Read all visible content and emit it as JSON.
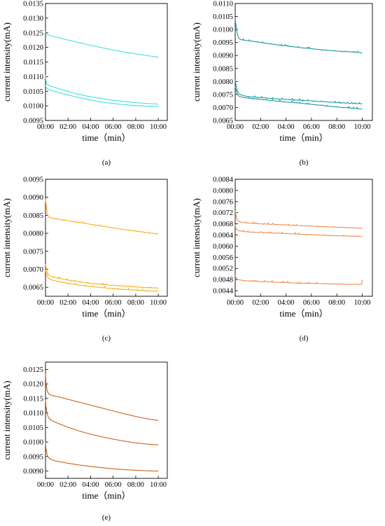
{
  "chart_data": [
    {
      "type": "line",
      "caption": "(a)",
      "xlabel": "time（min）",
      "ylabel": "current intensity(mA)",
      "xticks": [
        "00:00",
        "02:00",
        "04:00",
        "06:00",
        "08:00",
        "10:00"
      ],
      "yticks": [
        "0.0095",
        "0.0100",
        "0.0105",
        "0.0110",
        "0.0115",
        "0.0120",
        "0.0125",
        "0.0130",
        "0.0135"
      ],
      "xlim": [
        0,
        10.8
      ],
      "ylim": [
        0.0095,
        0.0135
      ],
      "color": "#3fe0e0",
      "series": [
        {
          "x": [
            0,
            0.05,
            0.2,
            0.5,
            1,
            2,
            3,
            4,
            5,
            6,
            7,
            8,
            9,
            10
          ],
          "values": [
            0.01255,
            0.01248,
            0.01243,
            0.0124,
            0.01235,
            0.01225,
            0.01216,
            0.01207,
            0.01199,
            0.01191,
            0.01184,
            0.01178,
            0.01172,
            0.01166
          ]
        },
        {
          "x": [
            0,
            0.03,
            0.1,
            0.3,
            0.6,
            1,
            2,
            3,
            4,
            5,
            6,
            7,
            8,
            9,
            10
          ],
          "values": [
            0.01105,
            0.0109,
            0.01076,
            0.0107,
            0.01066,
            0.01061,
            0.01049,
            0.01039,
            0.01031,
            0.01025,
            0.01019,
            0.01015,
            0.01011,
            0.01008,
            0.01006
          ]
        },
        {
          "x": [
            0,
            0.1,
            0.3,
            0.6,
            1,
            2,
            3,
            4,
            5,
            6,
            7,
            8,
            9,
            10
          ],
          "values": [
            0.01068,
            0.01061,
            0.01056,
            0.01052,
            0.01047,
            0.01037,
            0.01028,
            0.0102,
            0.01013,
            0.01008,
            0.01004,
            0.01001,
            0.00999,
            0.00998
          ]
        }
      ],
      "noise": false
    },
    {
      "type": "line",
      "caption": "(b)",
      "xlabel": "time（min）",
      "ylabel": "current intensity(mA)",
      "xticks": [
        "00:00",
        "02:00",
        "04:00",
        "06:00",
        "08:00",
        "10:00"
      ],
      "yticks": [
        "0.0065",
        "0.0070",
        "0.0075",
        "0.0080",
        "0.0085",
        "0.0090",
        "0.0095",
        "0.0100",
        "0.0105",
        "0.0110"
      ],
      "xlim": [
        0,
        10.8
      ],
      "ylim": [
        0.0065,
        0.011
      ],
      "color": "#1a9aa0",
      "series": [
        {
          "x": [
            0,
            0.05,
            0.15,
            0.3,
            0.5,
            1,
            2,
            3,
            4,
            5,
            6,
            7,
            8,
            9,
            10
          ],
          "values": [
            0.0104,
            0.0102,
            0.00985,
            0.00965,
            0.0096,
            0.00957,
            0.0095,
            0.00943,
            0.00937,
            0.00931,
            0.00926,
            0.00921,
            0.00917,
            0.00914,
            0.0091
          ]
        },
        {
          "x": [
            0,
            0.05,
            0.15,
            0.3,
            0.6,
            1,
            2,
            3,
            4,
            5,
            6,
            7,
            8,
            9,
            10
          ],
          "values": [
            0.00805,
            0.0079,
            0.00765,
            0.00752,
            0.00746,
            0.00742,
            0.00738,
            0.00734,
            0.00731,
            0.00728,
            0.00725,
            0.00722,
            0.00719,
            0.00716,
            0.00714
          ]
        },
        {
          "x": [
            0,
            0.05,
            0.15,
            0.3,
            0.6,
            1,
            2,
            3,
            4,
            5,
            6,
            7,
            8,
            9,
            10
          ],
          "values": [
            0.0078,
            0.0077,
            0.00752,
            0.00743,
            0.00739,
            0.00736,
            0.00731,
            0.00726,
            0.00721,
            0.00717,
            0.00712,
            0.00707,
            0.00702,
            0.00698,
            0.00694
          ]
        }
      ],
      "noise": true
    },
    {
      "type": "line",
      "caption": "(c)",
      "xlabel": "time（min）",
      "ylabel": "current intensity(mA)",
      "xticks": [
        "00:00",
        "02:00",
        "04:00",
        "06:00",
        "08:00",
        "10:00"
      ],
      "yticks": [
        "0.0065",
        "0.0070",
        "0.0075",
        "0.0080",
        "0.0085",
        "0.0090",
        "0.0095"
      ],
      "xlim": [
        0,
        10.8
      ],
      "ylim": [
        0.00625,
        0.0095
      ],
      "color": "#f5b21b",
      "series": [
        {
          "x": [
            0,
            0.05,
            0.15,
            0.3,
            0.5,
            1,
            2,
            3,
            4,
            5,
            6,
            7,
            8,
            9,
            10
          ],
          "values": [
            0.00895,
            0.0088,
            0.00855,
            0.00845,
            0.00842,
            0.0084,
            0.00835,
            0.0083,
            0.00825,
            0.0082,
            0.00815,
            0.0081,
            0.00806,
            0.00802,
            0.00798
          ]
        },
        {
          "x": [
            0,
            0.05,
            0.15,
            0.3,
            0.6,
            1,
            2,
            3,
            4,
            5,
            6,
            7,
            8,
            9,
            10
          ],
          "values": [
            0.00715,
            0.00705,
            0.0069,
            0.00683,
            0.00679,
            0.00676,
            0.0067,
            0.00665,
            0.00661,
            0.00658,
            0.00655,
            0.00653,
            0.00651,
            0.00649,
            0.00648
          ]
        },
        {
          "x": [
            0,
            0.05,
            0.15,
            0.3,
            0.6,
            1,
            2,
            3,
            4,
            5,
            6,
            7,
            8,
            9,
            10
          ],
          "values": [
            0.007,
            0.0069,
            0.0068,
            0.00674,
            0.0067,
            0.00667,
            0.00661,
            0.00656,
            0.00652,
            0.00649,
            0.00646,
            0.00644,
            0.00642,
            0.0064,
            0.00639
          ]
        }
      ],
      "noise": true
    },
    {
      "type": "line",
      "caption": "(d)",
      "xlabel": "time（min）",
      "ylabel": "current intensity(mA)",
      "xticks": [
        "00:00",
        "02:00",
        "04:00",
        "06:00",
        "08:00",
        "10:00"
      ],
      "yticks": [
        "0.0044",
        "0.0048",
        "0.0052",
        "0.0056",
        "0.0060",
        "0.0064",
        "0.0068",
        "0.0072",
        "0.0076",
        "0.0080",
        "0.0084"
      ],
      "xlim": [
        0,
        10.8
      ],
      "ylim": [
        0.0042,
        0.0084
      ],
      "color": "#f28a4c",
      "series": [
        {
          "x": [
            0,
            0.05,
            0.15,
            0.3,
            0.6,
            1,
            2,
            3,
            4,
            5,
            6,
            7,
            8,
            9,
            10
          ],
          "values": [
            0.00725,
            0.00712,
            0.00695,
            0.00688,
            0.00685,
            0.00683,
            0.0068,
            0.00678,
            0.00676,
            0.00674,
            0.00672,
            0.0067,
            0.00668,
            0.00666,
            0.00664
          ]
        },
        {
          "x": [
            0,
            0.05,
            0.15,
            0.3,
            0.6,
            1,
            2,
            3,
            4,
            5,
            6,
            7,
            8,
            9,
            10
          ],
          "values": [
            0.00675,
            0.00665,
            0.00658,
            0.00655,
            0.00653,
            0.00651,
            0.00649,
            0.00647,
            0.00645,
            0.00643,
            0.00641,
            0.00639,
            0.00637,
            0.00636,
            0.00635
          ]
        },
        {
          "x": [
            0,
            0.05,
            0.15,
            0.3,
            0.6,
            1,
            2,
            3,
            4,
            5,
            6,
            7,
            8,
            9,
            9.95,
            10
          ],
          "values": [
            0.00495,
            0.00488,
            0.00482,
            0.00479,
            0.00477,
            0.00475,
            0.00473,
            0.00471,
            0.00469,
            0.00467,
            0.00466,
            0.00465,
            0.00464,
            0.00463,
            0.00463,
            0.00478
          ]
        }
      ],
      "noise": true
    },
    {
      "type": "line",
      "caption": "(e)",
      "xlabel": "time（min）",
      "ylabel": "current intensity(mA)",
      "xticks": [
        "00:00",
        "02:00",
        "04:00",
        "06:00",
        "08:00",
        "10:00"
      ],
      "yticks": [
        "0.0090",
        "0.0095",
        "0.0100",
        "0.0105",
        "0.0110",
        "0.0115",
        "0.0120",
        "0.0125"
      ],
      "xlim": [
        0,
        10.8
      ],
      "ylim": [
        0.00875,
        0.01275
      ],
      "color": "#c8621a",
      "series": [
        {
          "x": [
            0,
            0.05,
            0.15,
            0.3,
            0.6,
            1,
            2,
            3,
            4,
            5,
            6,
            7,
            8,
            9,
            10
          ],
          "values": [
            0.01235,
            0.012,
            0.01175,
            0.01165,
            0.0116,
            0.01157,
            0.01147,
            0.01137,
            0.01127,
            0.01117,
            0.01107,
            0.01097,
            0.01088,
            0.0108,
            0.01074
          ]
        },
        {
          "x": [
            0,
            0.05,
            0.15,
            0.3,
            0.6,
            1,
            2,
            3,
            4,
            5,
            6,
            7,
            8,
            9,
            10
          ],
          "values": [
            0.01145,
            0.0112,
            0.01095,
            0.01082,
            0.01073,
            0.01066,
            0.01051,
            0.01038,
            0.01027,
            0.01018,
            0.0101,
            0.01003,
            0.00997,
            0.00993,
            0.0099
          ]
        },
        {
          "x": [
            0,
            0.05,
            0.15,
            0.3,
            0.6,
            1,
            2,
            3,
            4,
            5,
            6,
            7,
            8,
            9,
            10
          ],
          "values": [
            0.01,
            0.00975,
            0.00955,
            0.00945,
            0.00938,
            0.00934,
            0.00927,
            0.00921,
            0.00916,
            0.00912,
            0.00908,
            0.00905,
            0.00903,
            0.00901,
            0.009
          ]
        }
      ],
      "noise": false
    }
  ]
}
